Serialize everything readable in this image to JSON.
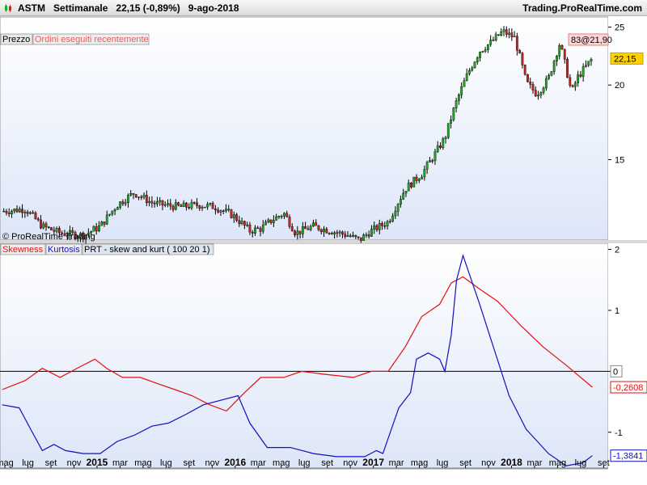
{
  "header": {
    "symbol": "ASTM",
    "timeframe": "Settimanale",
    "quote": "22,15 (-0,89%)",
    "date": "9-ago-2018",
    "brand": "Trading.ProRealTime.com"
  },
  "price_panel": {
    "tab_price": "Prezzo",
    "tab_orders": "Ordini eseguiti recentemente",
    "copyright": "© ProRealTime Trading",
    "last_price_label": "22,15",
    "top_label": "83@21,90",
    "y_ticks": [
      "25",
      "20",
      "15"
    ]
  },
  "indicator_panel": {
    "tab_skew": "Skewness",
    "tab_kurt": "Kurtosis",
    "tab_name": "PRT - skew and kurt ( 100 20 1)",
    "y_ticks": [
      "2",
      "1",
      "0",
      "-1"
    ],
    "skew_last_label": "-0,2608",
    "kurt_last_label": "-1,3841",
    "zero_label": "0"
  },
  "colors": {
    "skew": "#e01010",
    "kurt": "#1010c0",
    "up_candle": "#22aa22",
    "down_candle": "#cc2222",
    "panel_bg_top": "#ffffff",
    "panel_bg_bottom": "#dde6f8"
  },
  "x_axis": {
    "labels": [
      "mag",
      "lug",
      "set",
      "nov",
      "2015",
      "mar",
      "mag",
      "lug",
      "set",
      "nov",
      "2016",
      "mar",
      "mag",
      "lug",
      "set",
      "nov",
      "2017",
      "mar",
      "mag",
      "lug",
      "set",
      "nov",
      "2018",
      "mar",
      "mag",
      "lug",
      "set"
    ],
    "bold": [
      "2015",
      "2016",
      "2017",
      "2018"
    ]
  },
  "chart_data": [
    {
      "type": "candlestick",
      "title": "ASTM Settimanale",
      "ylim": [
        11,
        26
      ],
      "log_scale": true,
      "grid": false,
      "x_range": [
        "2014-05",
        "2018-09"
      ],
      "y_ticks": [
        15,
        20,
        25
      ],
      "close_points": [
        [
          "2014-05-05",
          12.3
        ],
        [
          "2014-07-01",
          12.4
        ],
        [
          "2014-08-15",
          11.6
        ],
        [
          "2014-10-01",
          11.3
        ],
        [
          "2014-12-01",
          11.2
        ],
        [
          "2015-01-15",
          11.6
        ],
        [
          "2015-03-01",
          12.6
        ],
        [
          "2015-04-15",
          13.2
        ],
        [
          "2015-06-01",
          12.7
        ],
        [
          "2015-07-01",
          12.6
        ],
        [
          "2015-08-15",
          12.5
        ],
        [
          "2015-10-01",
          12.6
        ],
        [
          "2015-11-15",
          12.5
        ],
        [
          "2016-01-01",
          12.1
        ],
        [
          "2016-02-15",
          11.4
        ],
        [
          "2016-03-15",
          11.5
        ],
        [
          "2016-04-15",
          11.9
        ],
        [
          "2016-05-15",
          12.2
        ],
        [
          "2016-06-15",
          11.3
        ],
        [
          "2016-08-01",
          11.6
        ],
        [
          "2016-09-15",
          11.4
        ],
        [
          "2016-11-01",
          11.2
        ],
        [
          "2016-12-01",
          11.0
        ],
        [
          "2017-01-01",
          11.4
        ],
        [
          "2017-02-15",
          11.8
        ],
        [
          "2017-04-01",
          13.4
        ],
        [
          "2017-05-15",
          14.2
        ],
        [
          "2017-06-15",
          15.2
        ],
        [
          "2017-07-15",
          16.3
        ],
        [
          "2017-08-15",
          18.8
        ],
        [
          "2017-09-15",
          21.0
        ],
        [
          "2017-10-15",
          22.8
        ],
        [
          "2017-11-15",
          23.6
        ],
        [
          "2017-12-15",
          24.6
        ],
        [
          "2018-01-15",
          24.0
        ],
        [
          "2018-02-15",
          20.2
        ],
        [
          "2018-03-15",
          19.3
        ],
        [
          "2018-04-15",
          20.5
        ],
        [
          "2018-05-15",
          23.5
        ],
        [
          "2018-06-15",
          19.4
        ],
        [
          "2018-07-01",
          20.6
        ],
        [
          "2018-08-09",
          22.15
        ]
      ],
      "last_close": 22.15
    },
    {
      "type": "line",
      "title": "PRT - skew and kurt ( 100 20 1)",
      "ylim": [
        -1.6,
        2.1
      ],
      "grid": false,
      "hline": 0,
      "series": [
        {
          "name": "Skewness",
          "color": "#e01010",
          "points": [
            [
              "2014-05-01",
              -0.3
            ],
            [
              "2014-07-01",
              -0.15
            ],
            [
              "2014-08-15",
              0.05
            ],
            [
              "2014-10-01",
              -0.1
            ],
            [
              "2014-11-15",
              0.05
            ],
            [
              "2015-01-01",
              0.2
            ],
            [
              "2015-02-01",
              0.05
            ],
            [
              "2015-03-15",
              -0.1
            ],
            [
              "2015-05-01",
              -0.1
            ],
            [
              "2015-06-15",
              -0.2
            ],
            [
              "2015-08-01",
              -0.3
            ],
            [
              "2015-09-15",
              -0.4
            ],
            [
              "2015-11-01",
              -0.55
            ],
            [
              "2015-12-15",
              -0.65
            ],
            [
              "2016-02-01",
              -0.35
            ],
            [
              "2016-03-15",
              -0.1
            ],
            [
              "2016-05-15",
              -0.1
            ],
            [
              "2016-07-01",
              0.0
            ],
            [
              "2016-09-01",
              -0.05
            ],
            [
              "2016-11-15",
              -0.1
            ],
            [
              "2017-01-01",
              0.0
            ],
            [
              "2017-02-15",
              0.0
            ],
            [
              "2017-04-01",
              0.4
            ],
            [
              "2017-05-15",
              0.9
            ],
            [
              "2017-07-01",
              1.1
            ],
            [
              "2017-08-01",
              1.45
            ],
            [
              "2017-09-01",
              1.55
            ],
            [
              "2017-10-15",
              1.35
            ],
            [
              "2017-12-01",
              1.15
            ],
            [
              "2018-02-01",
              0.75
            ],
            [
              "2018-04-01",
              0.4
            ],
            [
              "2018-06-01",
              0.1
            ],
            [
              "2018-08-09",
              -0.2608
            ]
          ],
          "last_value": -0.2608
        },
        {
          "name": "Kurtosis",
          "color": "#1010c0",
          "points": [
            [
              "2014-05-01",
              -0.55
            ],
            [
              "2014-06-15",
              -0.6
            ],
            [
              "2014-07-15",
              -0.95
            ],
            [
              "2014-08-15",
              -1.3
            ],
            [
              "2014-09-15",
              -1.2
            ],
            [
              "2014-10-15",
              -1.3
            ],
            [
              "2014-12-01",
              -1.35
            ],
            [
              "2015-01-15",
              -1.35
            ],
            [
              "2015-03-01",
              -1.15
            ],
            [
              "2015-04-15",
              -1.05
            ],
            [
              "2015-06-01",
              -0.9
            ],
            [
              "2015-07-15",
              -0.85
            ],
            [
              "2015-09-01",
              -0.7
            ],
            [
              "2015-10-15",
              -0.55
            ],
            [
              "2015-12-15",
              -0.45
            ],
            [
              "2016-01-15",
              -0.4
            ],
            [
              "2016-02-15",
              -0.85
            ],
            [
              "2016-04-01",
              -1.25
            ],
            [
              "2016-06-01",
              -1.25
            ],
            [
              "2016-08-01",
              -1.35
            ],
            [
              "2016-10-01",
              -1.4
            ],
            [
              "2016-12-15",
              -1.4
            ],
            [
              "2017-01-15",
              -1.3
            ],
            [
              "2017-02-01",
              -1.35
            ],
            [
              "2017-03-15",
              -0.6
            ],
            [
              "2017-04-15",
              -0.35
            ],
            [
              "2017-05-01",
              0.2
            ],
            [
              "2017-06-01",
              0.3
            ],
            [
              "2017-07-01",
              0.2
            ],
            [
              "2017-07-15",
              0.0
            ],
            [
              "2017-08-01",
              0.6
            ],
            [
              "2017-08-15",
              1.5
            ],
            [
              "2017-09-01",
              1.9
            ],
            [
              "2017-10-15",
              1.1
            ],
            [
              "2017-11-15",
              0.5
            ],
            [
              "2018-01-01",
              -0.4
            ],
            [
              "2018-02-15",
              -0.95
            ],
            [
              "2018-04-15",
              -1.35
            ],
            [
              "2018-06-01",
              -1.55
            ],
            [
              "2018-07-15",
              -1.5
            ],
            [
              "2018-08-09",
              -1.3841
            ]
          ],
          "last_value": -1.3841
        }
      ],
      "y_ticks": [
        2,
        1,
        0,
        -1
      ]
    }
  ]
}
